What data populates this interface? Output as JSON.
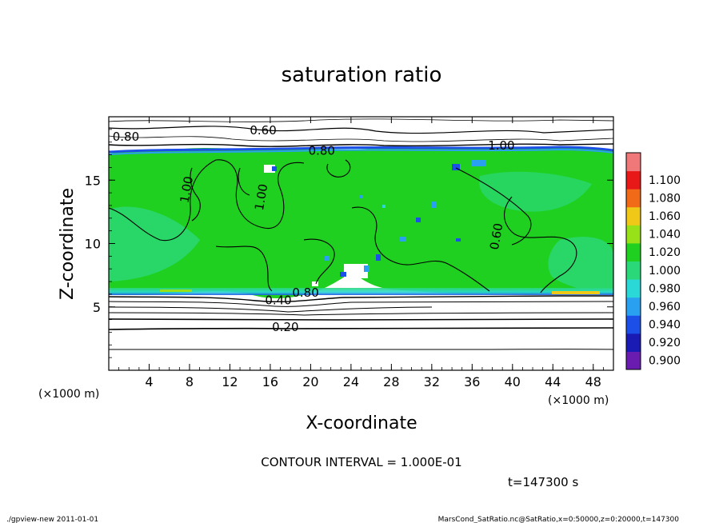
{
  "chart_data": {
    "type": "heatmap",
    "title": "saturation ratio",
    "xlabel": "X-coordinate",
    "ylabel": "Z-coordinate",
    "x_unit": "(×1000 m)",
    "z_unit": "(×1000 m)",
    "xlim": [
      0,
      50
    ],
    "ylim": [
      0,
      20
    ],
    "x_ticks": [
      "4",
      "8",
      "12",
      "16",
      "20",
      "24",
      "28",
      "32",
      "36",
      "40",
      "44",
      "48"
    ],
    "y_ticks": [
      "5",
      "10",
      "15"
    ],
    "colorbar": {
      "levels": [
        "0.900",
        "0.920",
        "0.940",
        "0.960",
        "0.980",
        "1.000",
        "1.020",
        "1.040",
        "1.060",
        "1.080",
        "1.100"
      ],
      "colors": [
        "#6a1cb0",
        "#1a1ab4",
        "#1c4fe8",
        "#2aa0f0",
        "#2ad8d8",
        "#2ad87a",
        "#20d020",
        "#98e018",
        "#f0c818",
        "#f06a18",
        "#e81818",
        "#f07878"
      ]
    },
    "contour_labels": [
      "0.60",
      "0.80",
      "0.80",
      "1.00",
      "1.00",
      "1.00",
      "0.60",
      "0.80",
      "0.40",
      "0.20"
    ],
    "regions": {
      "saturated_layer_z_range": [
        6,
        17
      ],
      "upper_subsaturated_z_range": [
        17,
        20
      ],
      "lower_subsaturated_z_range": [
        0,
        6
      ]
    },
    "contour_interval_text": "CONTOUR INTERVAL = 1.000E-01",
    "time_text": "t=147300 s"
  },
  "footer": {
    "left": "./gpview-new   2011-01-01",
    "right": "MarsCond_SatRatio.nc@SatRatio,x=0:50000,z=0:20000,t=147300"
  }
}
